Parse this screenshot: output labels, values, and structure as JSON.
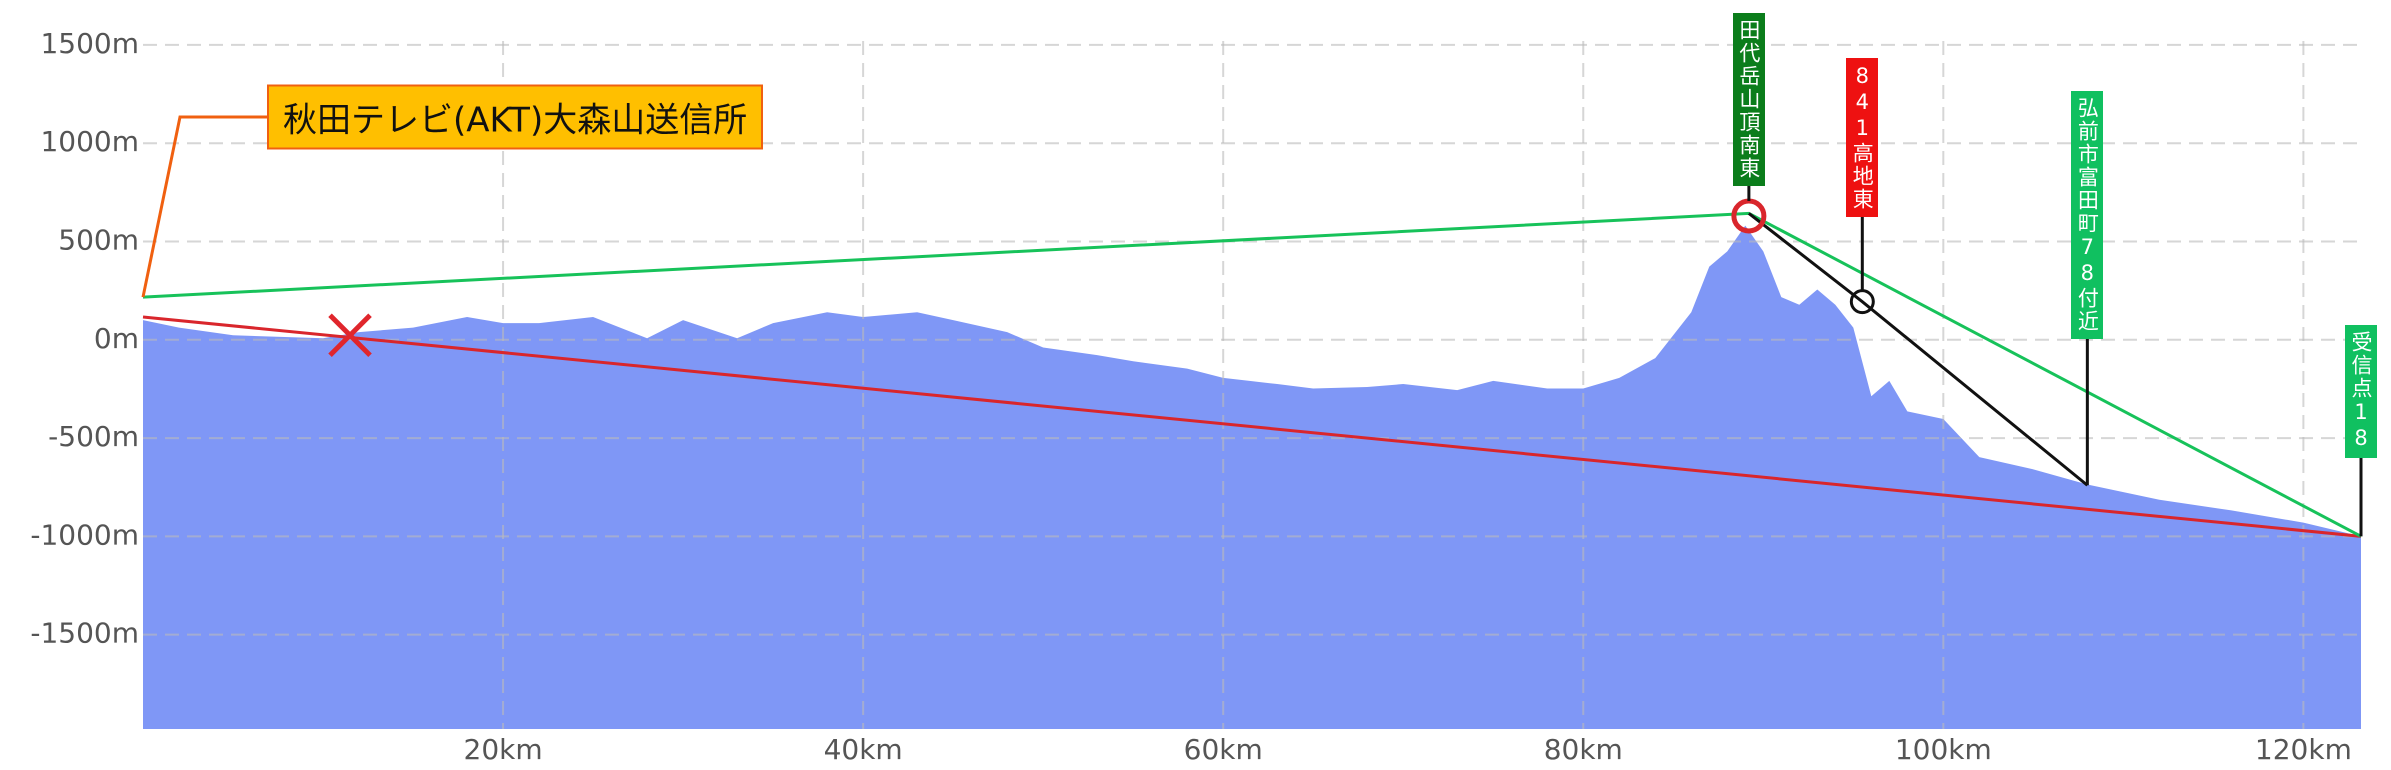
{
  "chart_data": {
    "type": "area",
    "xlim": [
      0,
      123.2
    ],
    "ylim": [
      -1980,
      1520
    ],
    "xticks": [
      {
        "value": 20,
        "label": "20km"
      },
      {
        "value": 40,
        "label": "40km"
      },
      {
        "value": 60,
        "label": "60km"
      },
      {
        "value": 80,
        "label": "80km"
      },
      {
        "value": 100,
        "label": "100km"
      },
      {
        "value": 120,
        "label": "120km"
      }
    ],
    "yticks": [
      {
        "value": 1500,
        "label": "1500m"
      },
      {
        "value": 1000,
        "label": "1000m"
      },
      {
        "value": 500,
        "label": "500m"
      },
      {
        "value": 0,
        "label": "0m"
      },
      {
        "value": -500,
        "label": "-500m"
      },
      {
        "value": -1000,
        "label": "-1000m"
      },
      {
        "value": -1500,
        "label": "-1500m"
      }
    ],
    "grid": true,
    "series": [
      {
        "color": "#7f97f6",
        "x": [
          0,
          2,
          5,
          10,
          12,
          15,
          18,
          20,
          22,
          25,
          28,
          30,
          33,
          35,
          38,
          40,
          43,
          45,
          48,
          50,
          53,
          55,
          58,
          60,
          63,
          65,
          68,
          70,
          73,
          75,
          78,
          80,
          82,
          84,
          86,
          87,
          88,
          89,
          90,
          91,
          92,
          93,
          94,
          95,
          96,
          97,
          98,
          100,
          102,
          105,
          108,
          112,
          116,
          120,
          123.2
        ],
        "values": [
          100,
          62,
          23,
          8,
          39,
          62,
          116,
          85,
          85,
          116,
          8,
          100,
          8,
          85,
          140,
          116,
          140,
          100,
          39,
          -39,
          -78,
          -109,
          -147,
          -194,
          -225,
          -248,
          -240,
          -225,
          -256,
          -209,
          -248,
          -248,
          -194,
          -93,
          140,
          372,
          450,
          581,
          450,
          217,
          178,
          256,
          178,
          62,
          -287,
          -209,
          -364,
          -403,
          -597,
          -659,
          -736,
          -814,
          -868,
          -930,
          -1000
        ]
      }
    ],
    "lines": [
      {
        "color": "#d9262c",
        "x": [
          0,
          123.2
        ],
        "values": [
          116,
          -1000
        ]
      },
      {
        "color": "#17c25a",
        "x": [
          0,
          89.2,
          123.2
        ],
        "values": [
          217,
          643,
          -1000
        ]
      },
      {
        "color": "#111111",
        "x": [
          89.2,
          95.5,
          108
        ],
        "values": [
          643,
          194,
          -740
        ]
      }
    ],
    "markers": [
      {
        "type": "cross",
        "x": 11.5,
        "y": 23,
        "color": "#e0262c"
      },
      {
        "type": "circle",
        "x": 89.2,
        "y": 630,
        "color": "#d9262c"
      },
      {
        "type": "circle",
        "x": 95.5,
        "y": 194,
        "color": "#111111"
      }
    ],
    "transmitter": {
      "text": "秋田テレビ(AKT)大森山送信所",
      "x": 0,
      "y": 217
    },
    "annotations": [
      {
        "text": "田代岳山頂南東",
        "x": 89.2,
        "y": 630,
        "color": "#0b7d1b"
      },
      {
        "text": "841高地東",
        "x": 95.5,
        "y": 194,
        "color": "#ee1111"
      },
      {
        "text": "弘前市富田町78付近",
        "x": 108,
        "y": -740,
        "color": "#10c060"
      },
      {
        "text": "受信点18",
        "x": 123.2,
        "y": -1000,
        "color": "#10c060"
      }
    ]
  }
}
